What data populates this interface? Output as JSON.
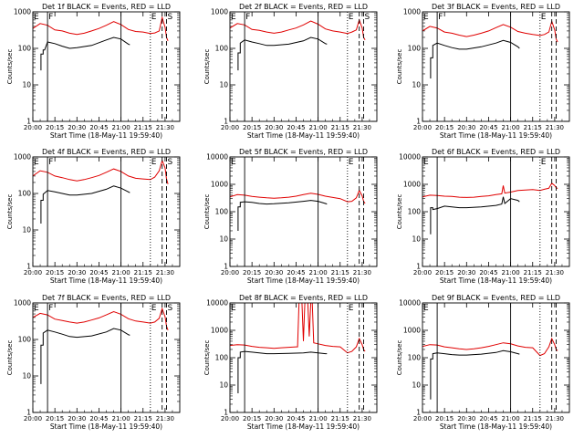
{
  "time_axis": {
    "xlabel": "Start Time (18-May-11 19:59:40)",
    "ticks": [
      {
        "t": 0,
        "label": "20:00"
      },
      {
        "t": 15,
        "label": "20:15"
      },
      {
        "t": 30,
        "label": "20:30"
      },
      {
        "t": 45,
        "label": "20:45"
      },
      {
        "t": 60,
        "label": "21:00"
      },
      {
        "t": 75,
        "label": "21:15"
      },
      {
        "t": 90,
        "label": "21:30"
      }
    ],
    "xlim": [
      0,
      100
    ]
  },
  "ylabel": "Counts/sec",
  "series_colors": {
    "events": "#000000",
    "lld": "#e00000"
  },
  "chart_data": [
    {
      "type": "line",
      "title": "Det 1f BLACK = Events, RED = LLD",
      "ylog": true,
      "ylim": [
        1,
        1000
      ],
      "y_ticks": [
        1,
        10,
        100,
        1000
      ],
      "events": {
        "x": [
          5.5,
          5.5,
          7,
          7,
          8,
          10,
          15,
          20,
          25,
          30,
          40,
          50,
          55,
          60,
          65,
          66
        ],
        "y": [
          25,
          70,
          70,
          90,
          90,
          150,
          135,
          115,
          100,
          105,
          120,
          170,
          200,
          180,
          130,
          125
        ]
      },
      "lld": {
        "x": [
          0,
          5,
          10,
          15,
          20,
          25,
          30,
          35,
          40,
          45,
          50,
          55,
          60,
          65,
          70,
          75,
          80,
          83,
          86,
          88,
          90,
          91,
          92
        ],
        "y": [
          350,
          480,
          430,
          320,
          300,
          260,
          240,
          260,
          300,
          350,
          430,
          540,
          450,
          330,
          290,
          280,
          255,
          265,
          300,
          700,
          380,
          200,
          160
        ]
      },
      "vlines": [
        {
          "x": 10,
          "style": "solid",
          "label": "F"
        },
        {
          "x": 60,
          "style": "solid",
          "label": ""
        },
        {
          "x": 80,
          "style": "dotted",
          "label": "E"
        },
        {
          "x": 88,
          "style": "dashed",
          "label": ""
        },
        {
          "x": 91,
          "style": "dashed",
          "label": "S"
        }
      ],
      "corner_label": "E"
    },
    {
      "type": "line",
      "title": "Det 2f BLACK = Events, RED = LLD",
      "ylog": true,
      "ylim": [
        1,
        1000
      ],
      "y_ticks": [
        1,
        10,
        100,
        1000
      ],
      "events": {
        "x": [
          5.5,
          5.5,
          7,
          7,
          10,
          15,
          20,
          25,
          30,
          40,
          50,
          55,
          60,
          65,
          66
        ],
        "y": [
          25,
          75,
          75,
          140,
          170,
          150,
          135,
          120,
          120,
          130,
          160,
          200,
          180,
          135,
          130
        ]
      },
      "lld": {
        "x": [
          0,
          5,
          10,
          15,
          20,
          25,
          30,
          35,
          40,
          45,
          50,
          55,
          60,
          65,
          70,
          75,
          80,
          83,
          86,
          88,
          90,
          91,
          92
        ],
        "y": [
          360,
          480,
          440,
          330,
          310,
          280,
          260,
          280,
          320,
          360,
          440,
          560,
          460,
          340,
          300,
          280,
          255,
          280,
          320,
          600,
          360,
          200,
          170
        ]
      },
      "vlines": [
        {
          "x": 10,
          "style": "solid",
          "label": "F"
        },
        {
          "x": 60,
          "style": "solid",
          "label": ""
        },
        {
          "x": 80,
          "style": "dotted",
          "label": "E"
        },
        {
          "x": 88,
          "style": "dashed",
          "label": ""
        },
        {
          "x": 91,
          "style": "dashed",
          "label": "S"
        }
      ],
      "corner_label": "E"
    },
    {
      "type": "line",
      "title": "Det 3f BLACK = Events, RED = LLD",
      "ylog": true,
      "ylim": [
        1,
        1000
      ],
      "y_ticks": [
        1,
        10,
        100,
        1000
      ],
      "events": {
        "x": [
          5.5,
          5.5,
          7,
          7,
          10,
          15,
          20,
          25,
          30,
          40,
          50,
          55,
          60,
          65,
          66
        ],
        "y": [
          15,
          55,
          55,
          120,
          140,
          120,
          105,
          95,
          95,
          110,
          140,
          165,
          145,
          110,
          100
        ]
      },
      "lld": {
        "x": [
          0,
          5,
          10,
          15,
          20,
          25,
          30,
          35,
          40,
          45,
          50,
          55,
          60,
          65,
          70,
          75,
          80,
          83,
          86,
          88,
          90,
          91,
          92
        ],
        "y": [
          300,
          400,
          360,
          280,
          260,
          230,
          210,
          230,
          260,
          300,
          370,
          450,
          380,
          290,
          260,
          240,
          225,
          240,
          280,
          550,
          320,
          180,
          150
        ]
      },
      "vlines": [
        {
          "x": 10,
          "style": "solid",
          "label": "F"
        },
        {
          "x": 60,
          "style": "solid",
          "label": ""
        },
        {
          "x": 80,
          "style": "dotted",
          "label": "E"
        },
        {
          "x": 88,
          "style": "dashed",
          "label": ""
        },
        {
          "x": 91,
          "style": "dashed",
          "label": ""
        }
      ],
      "corner_label": "E"
    },
    {
      "type": "line",
      "title": "Det 4f BLACK = Events, RED = LLD",
      "ylog": true,
      "ylim": [
        1,
        1000
      ],
      "y_ticks": [
        1,
        10,
        100,
        1000
      ],
      "events": {
        "x": [
          5.5,
          5.5,
          7,
          7,
          10,
          15,
          20,
          25,
          30,
          40,
          50,
          55,
          60,
          65,
          66
        ],
        "y": [
          15,
          65,
          65,
          95,
          120,
          110,
          100,
          90,
          90,
          100,
          130,
          160,
          140,
          110,
          105
        ]
      },
      "lld": {
        "x": [
          0,
          5,
          10,
          15,
          20,
          25,
          30,
          35,
          40,
          45,
          50,
          55,
          60,
          65,
          70,
          75,
          80,
          83,
          86,
          88,
          90,
          91,
          92
        ],
        "y": [
          300,
          420,
          380,
          300,
          270,
          240,
          220,
          240,
          270,
          310,
          380,
          470,
          400,
          300,
          260,
          250,
          240,
          280,
          420,
          800,
          500,
          250,
          180
        ]
      },
      "vlines": [
        {
          "x": 10,
          "style": "solid",
          "label": "F"
        },
        {
          "x": 60,
          "style": "solid",
          "label": ""
        },
        {
          "x": 80,
          "style": "dotted",
          "label": "E"
        },
        {
          "x": 88,
          "style": "dashed",
          "label": ""
        },
        {
          "x": 91,
          "style": "dashed",
          "label": "S"
        }
      ],
      "corner_label": "E"
    },
    {
      "type": "line",
      "title": "Det 5f BLACK = Events, RED = LLD",
      "ylog": true,
      "ylim": [
        1,
        10000
      ],
      "y_ticks": [
        1,
        10,
        100,
        1000,
        10000
      ],
      "events": {
        "x": [
          5.5,
          5.5,
          7,
          7,
          10,
          15,
          20,
          25,
          30,
          40,
          50,
          55,
          60,
          65,
          66
        ],
        "y": [
          20,
          150,
          150,
          220,
          230,
          220,
          200,
          190,
          195,
          210,
          240,
          260,
          240,
          200,
          190
        ]
      },
      "lld": {
        "x": [
          0,
          5,
          10,
          15,
          20,
          25,
          30,
          35,
          40,
          45,
          50,
          55,
          60,
          65,
          70,
          75,
          80,
          83,
          86,
          88,
          90,
          91,
          92
        ],
        "y": [
          350,
          420,
          400,
          360,
          340,
          320,
          310,
          320,
          340,
          370,
          420,
          470,
          430,
          370,
          330,
          300,
          230,
          240,
          320,
          600,
          380,
          240,
          200
        ]
      },
      "vlines": [
        {
          "x": 10,
          "style": "solid",
          "label": ""
        },
        {
          "x": 60,
          "style": "solid",
          "label": ""
        },
        {
          "x": 80,
          "style": "dotted",
          "label": "E"
        },
        {
          "x": 88,
          "style": "dashed",
          "label": ""
        },
        {
          "x": 91,
          "style": "dashed",
          "label": ""
        }
      ],
      "corner_label": "E"
    },
    {
      "type": "line",
      "title": "Det 6f BLACK = Events, RED = LLD",
      "ylog": true,
      "ylim": [
        1,
        10000
      ],
      "y_ticks": [
        1,
        10,
        100,
        1000,
        10000
      ],
      "events": {
        "x": [
          5.5,
          5.5,
          7,
          7,
          10,
          15,
          20,
          25,
          30,
          40,
          50,
          54,
          55,
          56,
          60,
          65,
          66
        ],
        "y": [
          15,
          140,
          140,
          120,
          130,
          160,
          150,
          140,
          140,
          150,
          170,
          190,
          350,
          200,
          300,
          260,
          230
        ]
      },
      "lld": {
        "x": [
          0,
          5,
          10,
          15,
          20,
          25,
          30,
          35,
          40,
          45,
          50,
          54,
          55,
          56,
          60,
          65,
          70,
          75,
          80,
          83,
          86,
          88,
          90,
          91,
          92
        ],
        "y": [
          350,
          400,
          390,
          370,
          360,
          340,
          330,
          340,
          360,
          380,
          420,
          450,
          900,
          480,
          520,
          600,
          620,
          640,
          600,
          660,
          720,
          1100,
          900,
          750,
          700
        ]
      },
      "vlines": [
        {
          "x": 10,
          "style": "solid",
          "label": ""
        },
        {
          "x": 60,
          "style": "solid",
          "label": ""
        },
        {
          "x": 80,
          "style": "dotted",
          "label": "E"
        },
        {
          "x": 88,
          "style": "dashed",
          "label": ""
        },
        {
          "x": 91,
          "style": "dashed",
          "label": ""
        }
      ],
      "corner_label": "E"
    },
    {
      "type": "line",
      "title": "Det 7f BLACK = Events, RED = LLD",
      "ylog": true,
      "ylim": [
        1,
        1000
      ],
      "y_ticks": [
        1,
        10,
        100,
        1000
      ],
      "events": {
        "x": [
          5.5,
          5.5,
          7,
          7,
          10,
          15,
          20,
          25,
          30,
          40,
          50,
          55,
          60,
          65,
          66
        ],
        "y": [
          6,
          70,
          70,
          150,
          180,
          160,
          140,
          120,
          115,
          125,
          160,
          200,
          180,
          135,
          130
        ]
      },
      "lld": {
        "x": [
          0,
          5,
          10,
          15,
          20,
          25,
          30,
          35,
          40,
          45,
          50,
          55,
          60,
          65,
          70,
          75,
          80,
          83,
          86,
          88,
          90,
          91,
          92
        ],
        "y": [
          400,
          520,
          470,
          360,
          330,
          300,
          280,
          300,
          340,
          390,
          470,
          580,
          490,
          370,
          320,
          300,
          280,
          300,
          380,
          700,
          420,
          230,
          180
        ]
      },
      "vlines": [
        {
          "x": 10,
          "style": "solid",
          "label": "F"
        },
        {
          "x": 60,
          "style": "solid",
          "label": ""
        },
        {
          "x": 80,
          "style": "dotted",
          "label": "E"
        },
        {
          "x": 88,
          "style": "dashed",
          "label": ""
        },
        {
          "x": 91,
          "style": "dashed",
          "label": "S"
        }
      ],
      "corner_label": "E"
    },
    {
      "type": "line",
      "title": "Det 8f BLACK = Events, RED = LLD",
      "ylog": true,
      "ylim": [
        1,
        10000
      ],
      "y_ticks": [
        1,
        10,
        100,
        1000,
        10000
      ],
      "events": {
        "x": [
          5.5,
          5.5,
          7,
          7,
          10,
          15,
          20,
          25,
          30,
          40,
          50,
          55,
          60,
          65,
          66
        ],
        "y": [
          5,
          100,
          100,
          160,
          170,
          160,
          150,
          140,
          140,
          145,
          150,
          160,
          150,
          140,
          140
        ]
      },
      "lld": {
        "x": [
          0,
          5,
          10,
          15,
          20,
          25,
          30,
          35,
          40,
          45,
          46,
          47,
          49,
          50,
          51,
          53,
          54,
          55,
          56,
          57,
          60,
          65,
          70,
          75,
          80,
          83,
          86,
          88,
          90,
          91,
          92
        ],
        "y": [
          280,
          300,
          290,
          260,
          240,
          230,
          220,
          230,
          240,
          250,
          250,
          15000,
          15000,
          400,
          15000,
          15000,
          600,
          15000,
          15000,
          350,
          320,
          280,
          260,
          250,
          150,
          170,
          250,
          500,
          300,
          200,
          170
        ]
      },
      "vlines": [
        {
          "x": 10,
          "style": "solid",
          "label": ""
        },
        {
          "x": 60,
          "style": "solid",
          "label": ""
        },
        {
          "x": 80,
          "style": "dotted",
          "label": "E"
        },
        {
          "x": 88,
          "style": "dashed",
          "label": ""
        },
        {
          "x": 91,
          "style": "dashed",
          "label": ""
        }
      ],
      "corner_label": "E"
    },
    {
      "type": "line",
      "title": "Det 9f BLACK = Events, RED = LLD",
      "ylog": true,
      "ylim": [
        1,
        10000
      ],
      "y_ticks": [
        1,
        10,
        100,
        1000,
        10000
      ],
      "events": {
        "x": [
          5.5,
          5.5,
          7,
          7,
          10,
          15,
          20,
          25,
          30,
          40,
          50,
          55,
          60,
          65,
          66
        ],
        "y": [
          3,
          90,
          90,
          140,
          150,
          140,
          130,
          125,
          125,
          135,
          155,
          180,
          165,
          140,
          135
        ]
      },
      "lld": {
        "x": [
          0,
          5,
          10,
          15,
          20,
          25,
          30,
          35,
          40,
          45,
          50,
          55,
          60,
          65,
          70,
          75,
          80,
          83,
          86,
          88,
          90,
          91,
          92
        ],
        "y": [
          260,
          300,
          290,
          250,
          230,
          210,
          200,
          210,
          230,
          260,
          300,
          350,
          320,
          270,
          240,
          230,
          120,
          140,
          250,
          500,
          300,
          200,
          180
        ]
      },
      "vlines": [
        {
          "x": 10,
          "style": "solid",
          "label": ""
        },
        {
          "x": 60,
          "style": "solid",
          "label": ""
        },
        {
          "x": 80,
          "style": "dotted",
          "label": ""
        },
        {
          "x": 88,
          "style": "dashed",
          "label": ""
        },
        {
          "x": 91,
          "style": "dashed",
          "label": ""
        }
      ],
      "corner_label": "E"
    }
  ]
}
